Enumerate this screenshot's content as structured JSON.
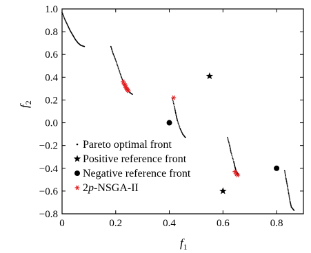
{
  "chart_data": {
    "type": "scatter",
    "title": "",
    "xlabel": "f",
    "xlabel_sub": "1",
    "ylabel": "f",
    "ylabel_sub": "2",
    "xlim": [
      0,
      0.9
    ],
    "ylim": [
      -0.8,
      1.0
    ],
    "xticks": [
      0,
      0.2,
      0.4,
      0.6,
      0.8
    ],
    "xtick_labels": [
      "0",
      "0.2",
      "0.4",
      "0.6",
      "0.8"
    ],
    "yticks": [
      1.0,
      0.8,
      0.6,
      0.4,
      0.2,
      0.0,
      -0.2,
      -0.4,
      -0.6,
      -0.8
    ],
    "ytick_labels": [
      "1.0",
      "0.8",
      "0.6",
      "0.4",
      "0.2",
      "0.0",
      "−0.2",
      "−0.4",
      "−0.6",
      "−0.8"
    ],
    "grid": false,
    "legend_position": "lower-left",
    "legend": [
      {
        "label": "Pareto optimal front",
        "marker": "dot"
      },
      {
        "label": "Positive reference front",
        "marker": "star"
      },
      {
        "label": "Negative reference front",
        "marker": "circle"
      },
      {
        "label_prefix": "2",
        "label_italic": "p",
        "label_suffix": "-NSGA-II",
        "marker": "red-asterisk"
      }
    ],
    "series": [
      {
        "name": "Pareto optimal front",
        "marker": "dot",
        "color": "#000000",
        "segments": [
          [
            [
              0.0,
              0.97
            ],
            [
              0.01,
              0.91
            ],
            [
              0.02,
              0.86
            ],
            [
              0.03,
              0.81
            ],
            [
              0.04,
              0.77
            ],
            [
              0.05,
              0.73
            ],
            [
              0.06,
              0.7
            ],
            [
              0.07,
              0.68
            ],
            [
              0.083,
              0.67
            ]
          ],
          [
            [
              0.182,
              0.67
            ],
            [
              0.19,
              0.61
            ],
            [
              0.2,
              0.55
            ],
            [
              0.21,
              0.48
            ],
            [
              0.22,
              0.41
            ],
            [
              0.23,
              0.35
            ],
            [
              0.24,
              0.3
            ],
            [
              0.25,
              0.27
            ],
            [
              0.262,
              0.25
            ]
          ],
          [
            [
              0.412,
              0.21
            ],
            [
              0.42,
              0.13
            ],
            [
              0.425,
              0.07
            ],
            [
              0.43,
              0.02
            ],
            [
              0.44,
              -0.05
            ],
            [
              0.45,
              -0.1
            ],
            [
              0.46,
              -0.13
            ]
          ],
          [
            [
              0.617,
              -0.13
            ],
            [
              0.625,
              -0.2
            ],
            [
              0.63,
              -0.26
            ],
            [
              0.64,
              -0.34
            ],
            [
              0.645,
              -0.39
            ],
            [
              0.65,
              -0.43
            ],
            [
              0.66,
              -0.46
            ]
          ],
          [
            [
              0.83,
              -0.42
            ],
            [
              0.835,
              -0.49
            ],
            [
              0.84,
              -0.55
            ],
            [
              0.845,
              -0.62
            ],
            [
              0.85,
              -0.69
            ],
            [
              0.855,
              -0.74
            ],
            [
              0.865,
              -0.77
            ]
          ]
        ]
      },
      {
        "name": "Positive reference front",
        "marker": "star",
        "color": "#000000",
        "points": [
          [
            0.55,
            0.41
          ],
          [
            0.6,
            -0.6
          ]
        ]
      },
      {
        "name": "Negative reference front",
        "marker": "circle",
        "color": "#000000",
        "points": [
          [
            0.4,
            0.0
          ],
          [
            0.8,
            -0.4
          ]
        ]
      },
      {
        "name": "2p-NSGA-II",
        "marker": "red-asterisk",
        "color": "#e31a1c",
        "points": [
          [
            0.228,
            0.36
          ],
          [
            0.232,
            0.34
          ],
          [
            0.235,
            0.33
          ],
          [
            0.238,
            0.31
          ],
          [
            0.241,
            0.3
          ],
          [
            0.244,
            0.29
          ],
          [
            0.247,
            0.28
          ],
          [
            0.416,
            0.22
          ],
          [
            0.645,
            -0.43
          ],
          [
            0.65,
            -0.45
          ],
          [
            0.655,
            -0.46
          ]
        ]
      }
    ]
  }
}
